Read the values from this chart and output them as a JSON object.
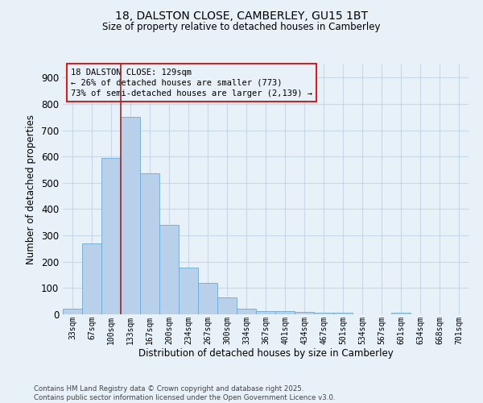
{
  "title_line1": "18, DALSTON CLOSE, CAMBERLEY, GU15 1BT",
  "title_line2": "Size of property relative to detached houses in Camberley",
  "xlabel": "Distribution of detached houses by size in Camberley",
  "ylabel": "Number of detached properties",
  "categories": [
    "33sqm",
    "67sqm",
    "100sqm",
    "133sqm",
    "167sqm",
    "200sqm",
    "234sqm",
    "267sqm",
    "300sqm",
    "334sqm",
    "367sqm",
    "401sqm",
    "434sqm",
    "467sqm",
    "501sqm",
    "534sqm",
    "567sqm",
    "601sqm",
    "634sqm",
    "668sqm",
    "701sqm"
  ],
  "values": [
    22,
    270,
    595,
    750,
    535,
    340,
    178,
    118,
    65,
    22,
    13,
    13,
    8,
    6,
    5,
    0,
    0,
    5,
    0,
    0,
    0
  ],
  "bar_color": "#b8d0ea",
  "bar_edgecolor": "#6aaad4",
  "grid_color": "#c8d8e8",
  "background_color": "#e8f0f8",
  "vline_color": "#aa2222",
  "annotation_text": "18 DALSTON CLOSE: 129sqm\n← 26% of detached houses are smaller (773)\n73% of semi-detached houses are larger (2,139) →",
  "annotation_box_edgecolor": "#cc2222",
  "annotation_fontsize": 7.5,
  "ylim": [
    0,
    950
  ],
  "yticks": [
    0,
    100,
    200,
    300,
    400,
    500,
    600,
    700,
    800,
    900
  ],
  "footnote": "Contains HM Land Registry data © Crown copyright and database right 2025.\nContains public sector information licensed under the Open Government Licence v3.0.",
  "figsize": [
    6.0,
    5.0
  ],
  "dpi": 100
}
